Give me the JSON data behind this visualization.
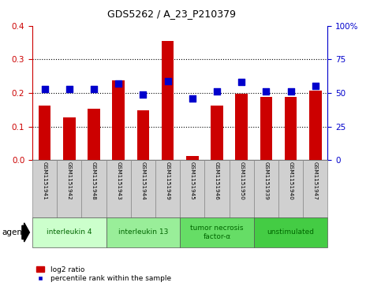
{
  "title": "GDS5262 / A_23_P210379",
  "samples": [
    "GSM1151941",
    "GSM1151942",
    "GSM1151948",
    "GSM1151943",
    "GSM1151944",
    "GSM1151949",
    "GSM1151945",
    "GSM1151946",
    "GSM1151950",
    "GSM1151939",
    "GSM1151940",
    "GSM1151947"
  ],
  "log2_ratio": [
    0.163,
    0.128,
    0.153,
    0.238,
    0.148,
    0.355,
    0.012,
    0.163,
    0.197,
    0.188,
    0.188,
    0.208
  ],
  "percentile": [
    53,
    53,
    53,
    57,
    49,
    59,
    46,
    51,
    58,
    51,
    51,
    55
  ],
  "bar_color": "#cc0000",
  "dot_color": "#0000cc",
  "groups": [
    {
      "label": "interleukin 4",
      "start": 0,
      "end": 3,
      "color": "#ccffcc"
    },
    {
      "label": "interleukin 13",
      "start": 3,
      "end": 6,
      "color": "#99ee99"
    },
    {
      "label": "tumor necrosis\nfactor-α",
      "start": 6,
      "end": 9,
      "color": "#66dd66"
    },
    {
      "label": "unstimulated",
      "start": 9,
      "end": 12,
      "color": "#44cc44"
    }
  ],
  "ylim_left": [
    0,
    0.4
  ],
  "ylim_right": [
    0,
    100
  ],
  "yticks_left": [
    0,
    0.1,
    0.2,
    0.3,
    0.4
  ],
  "yticks_right": [
    0,
    25,
    50,
    75,
    100
  ],
  "yticklabels_right": [
    "0",
    "25",
    "50",
    "75",
    "100%"
  ],
  "left_tick_color": "#cc0000",
  "right_tick_color": "#0000cc",
  "bar_width": 0.5,
  "dot_size": 28,
  "agent_label": "agent",
  "sample_box_color": "#d0d0d0",
  "sample_box_edge": "#888888",
  "group_text_color": "#006600",
  "group_edge_color": "#555555"
}
